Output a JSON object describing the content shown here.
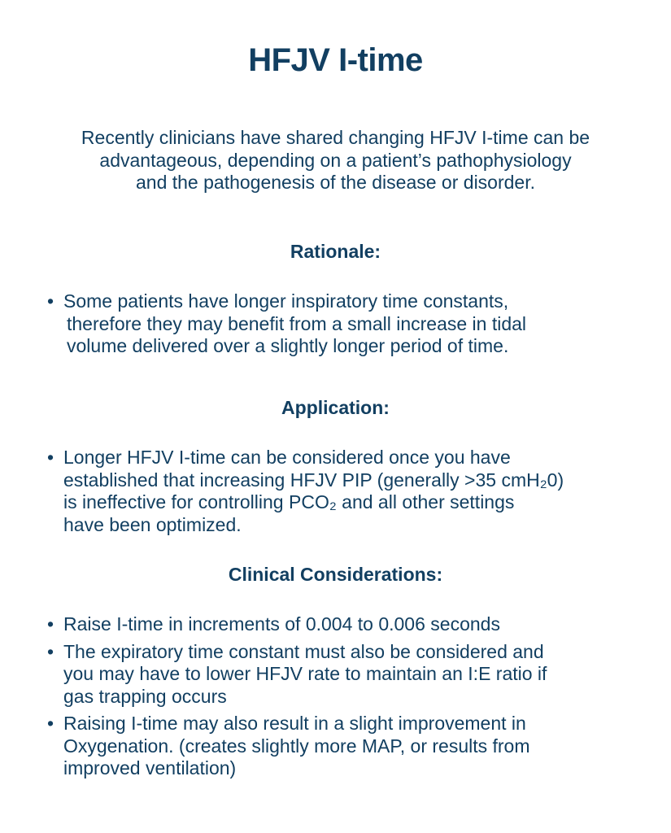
{
  "title": "HFJV I-time",
  "intro": [
    "Recently clinicians have shared changing HFJV I-time can be",
    "advantageous, depending on a patient’s pathophysiology",
    "and the pathogenesis of the disease or disorder."
  ],
  "sections": [
    {
      "heading": "Rationale:",
      "bullets": [
        [
          "Some patients have longer inspiratory time constants,",
          "therefore they may benefit from a small increase in tidal",
          "volume delivered over a slightly longer period of time."
        ]
      ]
    },
    {
      "heading": "Application:",
      "bullets": [
        [
          "Longer HFJV I-time can be considered once you have",
          "established that increasing HFJV PIP (generally >35 cmH₂0)",
          "is ineffective for controlling PCO₂ and all other settings",
          "have been optimized."
        ]
      ]
    },
    {
      "heading": "Clinical Considerations:",
      "bullets": [
        [
          "Raise I-time in increments of 0.004 to 0.006 seconds"
        ],
        [
          "The expiratory time constant must also be considered and",
          "you may have to lower HFJV rate to maintain an I:E ratio if",
          "gas trapping occurs"
        ],
        [
          "Raising I-time may also result in a slight improvement in",
          "Oxygenation. (creates slightly more MAP, or results from",
          "improved ventilation)"
        ]
      ]
    }
  ],
  "bullet_char": "•",
  "text_color": "#123f61"
}
